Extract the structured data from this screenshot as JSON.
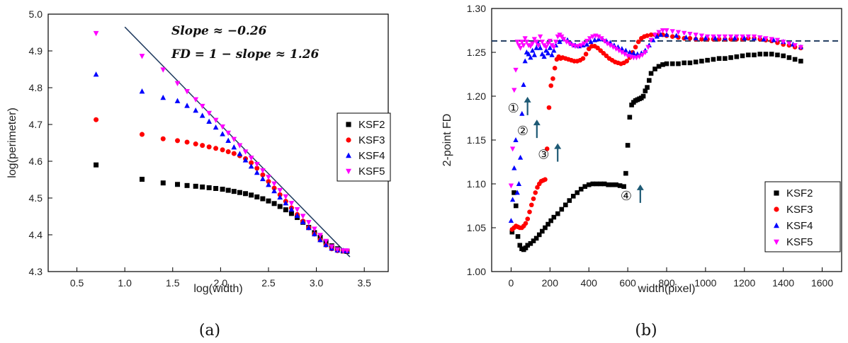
{
  "colors": {
    "KSF2": "#000000",
    "KSF3": "#ff0000",
    "KSF4": "#0000ff",
    "KSF5": "#ff00ff",
    "fit_line": "#1f3a5f",
    "dashed_line": "#1f3a5f",
    "arrow": "#1e5a75"
  },
  "chart_data": [
    {
      "type": "scatter",
      "panel_label": "(a)",
      "xlabel": "log(width)",
      "ylabel": "log(perimeter)",
      "xlim": [
        0.2,
        3.75
      ],
      "ylim": [
        4.3,
        5.0
      ],
      "xticks": [
        "0.5",
        "1.0",
        "1.5",
        "2.0",
        "2.5",
        "3.0",
        "3.5"
      ],
      "yticks": [
        "4.3",
        "4.4",
        "4.5",
        "4.6",
        "4.7",
        "4.8",
        "4.9",
        "5.0"
      ],
      "legend_position": "right",
      "annotations": [
        "Slope ≈ −0.26",
        "FD = 1 − slope ≈ 1.26"
      ],
      "fit_line": {
        "x": [
          1.0,
          3.35
        ],
        "y": [
          4.965,
          4.34
        ]
      },
      "series": [
        {
          "name": "KSF2",
          "marker": "square",
          "x": [
            0.7,
            1.18,
            1.4,
            1.55,
            1.65,
            1.74,
            1.81,
            1.88,
            1.95,
            2.02,
            2.08,
            2.14,
            2.2,
            2.26,
            2.32,
            2.38,
            2.44,
            2.5,
            2.56,
            2.62,
            2.68,
            2.74,
            2.8,
            2.86,
            2.92,
            2.98,
            3.04,
            3.1,
            3.16,
            3.22,
            3.28,
            3.32
          ],
          "y": [
            4.59,
            4.551,
            4.541,
            4.537,
            4.534,
            4.532,
            4.53,
            4.528,
            4.526,
            4.524,
            4.521,
            4.518,
            4.515,
            4.512,
            4.508,
            4.503,
            4.498,
            4.492,
            4.485,
            4.477,
            4.468,
            4.458,
            4.447,
            4.434,
            4.42,
            4.406,
            4.393,
            4.381,
            4.37,
            4.362,
            4.356,
            4.355
          ]
        },
        {
          "name": "KSF3",
          "marker": "circle",
          "x": [
            0.7,
            1.18,
            1.4,
            1.55,
            1.65,
            1.74,
            1.81,
            1.88,
            1.95,
            2.02,
            2.08,
            2.14,
            2.2,
            2.26,
            2.32,
            2.38,
            2.44,
            2.5,
            2.56,
            2.62,
            2.68,
            2.74,
            2.8,
            2.86,
            2.92,
            2.98,
            3.04,
            3.1,
            3.16,
            3.22,
            3.28,
            3.32
          ],
          "y": [
            4.713,
            4.673,
            4.661,
            4.656,
            4.652,
            4.647,
            4.643,
            4.639,
            4.635,
            4.631,
            4.626,
            4.621,
            4.615,
            4.607,
            4.596,
            4.581,
            4.563,
            4.545,
            4.527,
            4.509,
            4.491,
            4.473,
            4.455,
            4.437,
            4.419,
            4.402,
            4.386,
            4.372,
            4.362,
            4.357,
            4.356,
            4.356
          ]
        },
        {
          "name": "KSF4",
          "marker": "triangle-up",
          "x": [
            0.7,
            1.18,
            1.4,
            1.55,
            1.65,
            1.74,
            1.81,
            1.88,
            1.95,
            2.02,
            2.08,
            2.14,
            2.2,
            2.26,
            2.32,
            2.38,
            2.44,
            2.5,
            2.56,
            2.62,
            2.68,
            2.74,
            2.8,
            2.86,
            2.92,
            2.98,
            3.04,
            3.1,
            3.16,
            3.22,
            3.28,
            3.32
          ],
          "y": [
            4.836,
            4.79,
            4.773,
            4.764,
            4.751,
            4.738,
            4.724,
            4.708,
            4.692,
            4.674,
            4.656,
            4.638,
            4.62,
            4.603,
            4.586,
            4.569,
            4.552,
            4.536,
            4.519,
            4.502,
            4.486,
            4.469,
            4.452,
            4.435,
            4.419,
            4.402,
            4.386,
            4.373,
            4.363,
            4.358,
            4.357,
            4.356
          ]
        },
        {
          "name": "KSF5",
          "marker": "triangle-down",
          "x": [
            0.7,
            1.18,
            1.4,
            1.55,
            1.65,
            1.74,
            1.81,
            1.88,
            1.95,
            2.02,
            2.08,
            2.14,
            2.2,
            2.26,
            2.32,
            2.38,
            2.44,
            2.5,
            2.56,
            2.62,
            2.68,
            2.74,
            2.8,
            2.86,
            2.92,
            2.98,
            3.04,
            3.1,
            3.16,
            3.22,
            3.28,
            3.32
          ],
          "y": [
            4.948,
            4.886,
            4.849,
            4.812,
            4.79,
            4.768,
            4.75,
            4.731,
            4.712,
            4.694,
            4.677,
            4.66,
            4.643,
            4.626,
            4.609,
            4.592,
            4.575,
            4.557,
            4.539,
            4.521,
            4.504,
            4.486,
            4.469,
            4.451,
            4.434,
            4.416,
            4.399,
            4.383,
            4.368,
            4.36,
            4.357,
            4.357
          ]
        }
      ]
    },
    {
      "type": "scatter",
      "panel_label": "(b)",
      "xlabel": "width(pixel)",
      "ylabel": "2-point FD",
      "xlim": [
        -100,
        1700
      ],
      "ylim": [
        1.0,
        1.3
      ],
      "xticks": [
        "0",
        "200",
        "400",
        "600",
        "800",
        "1000",
        "1200",
        "1400",
        "1600"
      ],
      "yticks": [
        "1.00",
        "1.05",
        "1.10",
        "1.15",
        "1.20",
        "1.25",
        "1.30"
      ],
      "legend_position": "bottom-right",
      "reference_line_y": 1.263,
      "markers": [
        {
          "label": "①",
          "x": 70,
          "y": 1.188
        },
        {
          "label": "②",
          "x": 118,
          "y": 1.162
        },
        {
          "label": "③",
          "x": 225,
          "y": 1.135
        },
        {
          "label": "④",
          "x": 650,
          "y": 1.088
        }
      ],
      "series": [
        {
          "name": "KSF2",
          "marker": "square",
          "x": [
            5,
            15,
            25,
            35,
            45,
            55,
            65,
            75,
            85,
            100,
            115,
            130,
            145,
            160,
            175,
            190,
            205,
            220,
            240,
            260,
            280,
            300,
            320,
            340,
            360,
            380,
            400,
            420,
            440,
            460,
            480,
            500,
            520,
            540,
            560,
            580,
            590,
            600,
            610,
            620,
            630,
            640,
            650,
            660,
            670,
            680,
            690,
            700,
            710,
            720,
            740,
            760,
            780,
            800,
            830,
            860,
            890,
            920,
            950,
            980,
            1010,
            1040,
            1070,
            1100,
            1130,
            1160,
            1190,
            1220,
            1250,
            1280,
            1310,
            1340,
            1370,
            1400,
            1430,
            1460,
            1490
          ],
          "y": [
            1.045,
            1.09,
            1.075,
            1.04,
            1.03,
            1.026,
            1.025,
            1.027,
            1.03,
            1.032,
            1.035,
            1.038,
            1.042,
            1.046,
            1.05,
            1.054,
            1.058,
            1.062,
            1.066,
            1.071,
            1.076,
            1.081,
            1.086,
            1.09,
            1.094,
            1.097,
            1.099,
            1.1,
            1.1,
            1.1,
            1.1,
            1.099,
            1.099,
            1.099,
            1.098,
            1.097,
            1.112,
            1.144,
            1.176,
            1.19,
            1.193,
            1.195,
            1.196,
            1.197,
            1.198,
            1.2,
            1.206,
            1.21,
            1.218,
            1.226,
            1.231,
            1.234,
            1.236,
            1.237,
            1.237,
            1.237,
            1.238,
            1.238,
            1.239,
            1.24,
            1.241,
            1.242,
            1.243,
            1.243,
            1.244,
            1.245,
            1.246,
            1.247,
            1.247,
            1.248,
            1.248,
            1.248,
            1.247,
            1.246,
            1.244,
            1.242,
            1.24
          ]
        },
        {
          "name": "KSF3",
          "marker": "circle",
          "x": [
            5,
            15,
            25,
            35,
            45,
            55,
            65,
            75,
            85,
            95,
            105,
            115,
            125,
            135,
            145,
            155,
            165,
            175,
            185,
            195,
            205,
            215,
            225,
            235,
            245,
            255,
            265,
            280,
            295,
            310,
            325,
            340,
            355,
            370,
            385,
            400,
            415,
            430,
            445,
            460,
            475,
            490,
            505,
            520,
            535,
            550,
            565,
            580,
            595,
            610,
            625,
            640,
            655,
            670,
            685,
            700,
            720,
            740,
            760,
            780,
            800,
            830,
            860,
            890,
            920,
            950,
            980,
            1010,
            1040,
            1070,
            1100,
            1130,
            1160,
            1190,
            1220,
            1250,
            1280,
            1310,
            1340,
            1370,
            1400,
            1430,
            1460,
            1490
          ],
          "y": [
            1.048,
            1.05,
            1.052,
            1.051,
            1.05,
            1.05,
            1.052,
            1.055,
            1.06,
            1.068,
            1.076,
            1.083,
            1.09,
            1.096,
            1.1,
            1.103,
            1.104,
            1.105,
            1.14,
            1.187,
            1.212,
            1.22,
            1.232,
            1.242,
            1.245,
            1.243,
            1.244,
            1.243,
            1.242,
            1.241,
            1.24,
            1.24,
            1.241,
            1.243,
            1.248,
            1.254,
            1.257,
            1.257,
            1.255,
            1.252,
            1.249,
            1.246,
            1.243,
            1.241,
            1.239,
            1.238,
            1.237,
            1.238,
            1.24,
            1.244,
            1.25,
            1.256,
            1.262,
            1.266,
            1.268,
            1.269,
            1.27,
            1.27,
            1.27,
            1.27,
            1.269,
            1.268,
            1.267,
            1.266,
            1.266,
            1.265,
            1.265,
            1.265,
            1.265,
            1.265,
            1.265,
            1.265,
            1.265,
            1.265,
            1.266,
            1.266,
            1.265,
            1.264,
            1.263,
            1.261,
            1.259,
            1.258,
            1.256,
            1.255
          ]
        },
        {
          "name": "KSF4",
          "marker": "triangle-up",
          "x": [
            0,
            8,
            16,
            24,
            32,
            40,
            48,
            56,
            64,
            72,
            80,
            90,
            100,
            110,
            120,
            130,
            140,
            150,
            160,
            170,
            180,
            190,
            200,
            210,
            220,
            230,
            250,
            270,
            290,
            310,
            330,
            350,
            370,
            390,
            410,
            430,
            450,
            470,
            490,
            510,
            530,
            550,
            570,
            590,
            610,
            630,
            650,
            670,
            690,
            710,
            730,
            750,
            770,
            800,
            850,
            900,
            950,
            1000,
            1050,
            1100,
            1150,
            1200,
            1250,
            1300,
            1350,
            1400,
            1450,
            1490
          ],
          "y": [
            1.058,
            1.082,
            1.118,
            1.15,
            1.09,
            1.1,
            1.13,
            1.18,
            1.213,
            1.24,
            1.25,
            1.248,
            1.244,
            1.252,
            1.247,
            1.255,
            1.26,
            1.255,
            1.248,
            1.245,
            1.252,
            1.249,
            1.255,
            1.247,
            1.252,
            1.258,
            1.262,
            1.265,
            1.264,
            1.26,
            1.258,
            1.257,
            1.258,
            1.259,
            1.262,
            1.264,
            1.265,
            1.265,
            1.263,
            1.261,
            1.258,
            1.256,
            1.254,
            1.252,
            1.25,
            1.249,
            1.248,
            1.249,
            1.252,
            1.258,
            1.264,
            1.268,
            1.27,
            1.27,
            1.269,
            1.267,
            1.266,
            1.266,
            1.266,
            1.266,
            1.266,
            1.266,
            1.266,
            1.265,
            1.264,
            1.262,
            1.259,
            1.256
          ]
        },
        {
          "name": "KSF5",
          "marker": "triangle-down",
          "x": [
            0,
            8,
            16,
            24,
            32,
            40,
            48,
            56,
            64,
            72,
            80,
            90,
            100,
            110,
            120,
            130,
            140,
            150,
            160,
            170,
            180,
            190,
            200,
            210,
            220,
            230,
            240,
            250,
            260,
            270,
            285,
            300,
            315,
            330,
            345,
            360,
            375,
            390,
            405,
            420,
            435,
            450,
            465,
            480,
            495,
            510,
            525,
            540,
            555,
            570,
            585,
            600,
            615,
            630,
            645,
            660,
            675,
            690,
            705,
            720,
            740,
            760,
            780,
            800,
            830,
            860,
            890,
            920,
            950,
            980,
            1010,
            1040,
            1070,
            1100,
            1130,
            1160,
            1190,
            1220,
            1250,
            1280,
            1310,
            1340,
            1370,
            1400,
            1430,
            1460,
            1490
          ],
          "y": [
            1.098,
            1.14,
            1.207,
            1.23,
            1.262,
            1.258,
            1.255,
            1.262,
            1.258,
            1.266,
            1.262,
            1.258,
            1.257,
            1.26,
            1.265,
            1.262,
            1.258,
            1.268,
            1.262,
            1.258,
            1.256,
            1.26,
            1.263,
            1.258,
            1.256,
            1.262,
            1.268,
            1.27,
            1.268,
            1.265,
            1.262,
            1.26,
            1.258,
            1.257,
            1.257,
            1.258,
            1.26,
            1.263,
            1.266,
            1.268,
            1.269,
            1.268,
            1.266,
            1.263,
            1.26,
            1.258,
            1.256,
            1.254,
            1.252,
            1.25,
            1.248,
            1.246,
            1.245,
            1.244,
            1.244,
            1.245,
            1.247,
            1.25,
            1.256,
            1.264,
            1.27,
            1.273,
            1.275,
            1.275,
            1.274,
            1.273,
            1.272,
            1.271,
            1.27,
            1.269,
            1.268,
            1.268,
            1.268,
            1.268,
            1.268,
            1.268,
            1.268,
            1.268,
            1.268,
            1.267,
            1.266,
            1.265,
            1.264,
            1.262,
            1.26,
            1.258,
            1.256
          ]
        }
      ]
    }
  ]
}
